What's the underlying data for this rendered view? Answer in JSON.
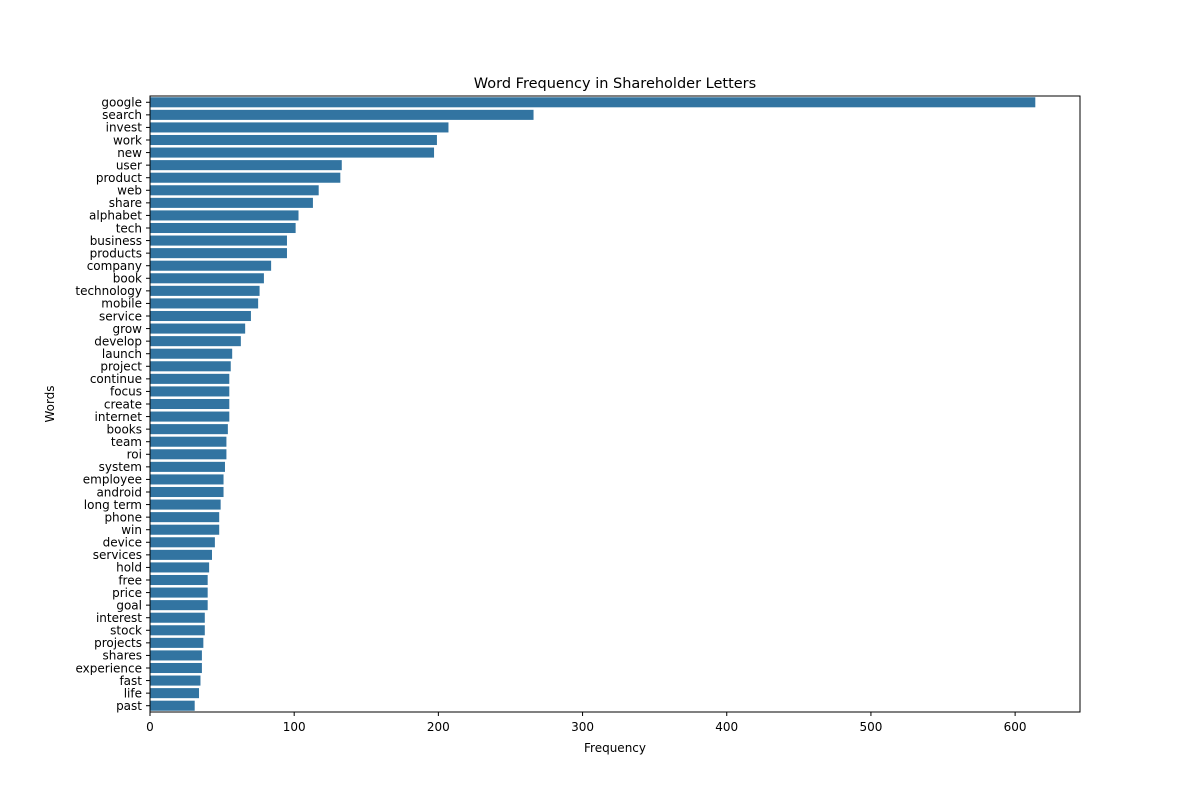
{
  "chart_data": {
    "type": "bar",
    "orientation": "horizontal",
    "title": "Word Frequency in Shareholder Letters",
    "xlabel": "Frequency",
    "ylabel": "Words",
    "xlim": [
      0,
      645
    ],
    "x_ticks": [
      0,
      100,
      200,
      300,
      400,
      500,
      600
    ],
    "grid": false,
    "legend": "none",
    "bar_color": "#3274a1",
    "categories": [
      "google",
      "search",
      "invest",
      "work",
      "new",
      "user",
      "product",
      "web",
      "share",
      "alphabet",
      "tech",
      "business",
      "products",
      "company",
      "book",
      "technology",
      "mobile",
      "service",
      "grow",
      "develop",
      "launch",
      "project",
      "continue",
      "focus",
      "create",
      "internet",
      "books",
      "team",
      "roi",
      "system",
      "employee",
      "android",
      "long term",
      "phone",
      "win",
      "device",
      "services",
      "hold",
      "free",
      "price",
      "goal",
      "interest",
      "stock",
      "projects",
      "shares",
      "experience",
      "fast",
      "life",
      "past"
    ],
    "values": [
      614,
      266,
      207,
      199,
      197,
      133,
      132,
      117,
      113,
      103,
      101,
      95,
      95,
      84,
      79,
      76,
      75,
      70,
      66,
      63,
      57,
      56,
      55,
      55,
      55,
      55,
      54,
      53,
      53,
      52,
      51,
      51,
      49,
      48,
      48,
      45,
      43,
      41,
      40,
      40,
      40,
      38,
      38,
      37,
      36,
      36,
      35,
      34,
      31
    ]
  }
}
